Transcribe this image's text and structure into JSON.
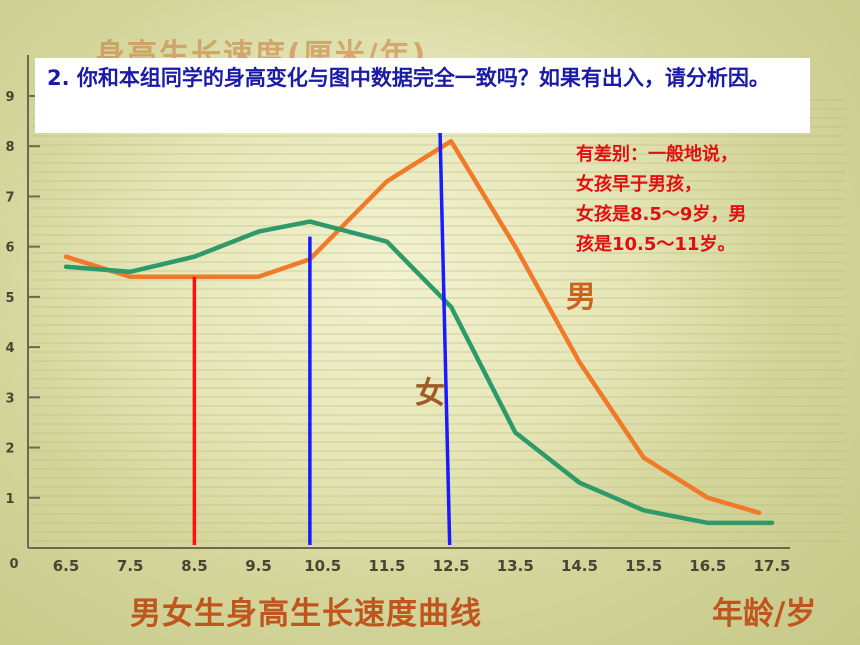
{
  "slide": {
    "faded_title": "身高生长速度(厘米/年)",
    "question": "2. 你和本组同学的身高变化与图中数据完全一致吗？如果有出入，请分析因。",
    "answer_lines": [
      "有差别：一般地说，",
      "女孩早于男孩，",
      "女孩是8.5～9岁，男",
      "孩是10.5～11岁。"
    ],
    "label_male": "男",
    "label_female": "女",
    "bottom_title": "男女生身高生长速度曲线",
    "x_unit": "年龄/岁",
    "colors": {
      "male_line": "#f07a28",
      "female_line": "#2e9a6a",
      "red_marker": "#ff1010",
      "blue_marker": "#1a1aff",
      "question_text": "#1a1aa8",
      "answer_text": "#e01010"
    }
  },
  "chart_data": {
    "type": "line",
    "title": "男女生身高生长速度曲线",
    "xlabel": "年龄/岁",
    "ylabel": "身高生长速度(厘米/年)",
    "x": [
      6.5,
      7.5,
      8.5,
      9.5,
      10.5,
      11.5,
      12.5,
      13.5,
      14.5,
      15.5,
      16.5,
      17.5
    ],
    "x_tick_labels": [
      "6.5",
      "7.5",
      "8.5",
      "9.5",
      "10.5",
      "11.5",
      "12.5",
      "13.5",
      "14.5",
      "15.5",
      "16.5",
      "17.5"
    ],
    "y_ticks": [
      0,
      1,
      2,
      3,
      4,
      5,
      6,
      7,
      8,
      9
    ],
    "y_tick_labels": [
      "0",
      "1",
      "2",
      "3",
      "4",
      "5",
      "6",
      "7",
      "8",
      "9"
    ],
    "xlim": [
      6.5,
      17.5
    ],
    "ylim": [
      0,
      9
    ],
    "grid": true,
    "series": [
      {
        "name": "男",
        "points": [
          [
            6.5,
            5.8
          ],
          [
            7.5,
            5.4
          ],
          [
            8.5,
            5.4
          ],
          [
            9.5,
            5.4
          ],
          [
            10.3,
            5.75
          ],
          [
            11.5,
            7.3
          ],
          [
            12.5,
            8.1
          ],
          [
            13.5,
            6.0
          ],
          [
            14.5,
            3.7
          ],
          [
            15.5,
            1.8
          ],
          [
            16.5,
            1.0
          ],
          [
            17.3,
            0.7
          ]
        ]
      },
      {
        "name": "女",
        "points": [
          [
            6.5,
            5.6
          ],
          [
            7.5,
            5.5
          ],
          [
            8.5,
            5.8
          ],
          [
            9.5,
            6.3
          ],
          [
            10.3,
            6.5
          ],
          [
            11.5,
            6.1
          ],
          [
            12.5,
            4.8
          ],
          [
            13.5,
            2.3
          ],
          [
            14.5,
            1.3
          ],
          [
            15.5,
            0.75
          ],
          [
            16.5,
            0.5
          ],
          [
            17.5,
            0.5
          ]
        ]
      }
    ],
    "markers": [
      {
        "x": 8.5,
        "y_top": 5.4,
        "color": "red"
      },
      {
        "x": 10.3,
        "y_top": 6.2,
        "color": "blue"
      },
      {
        "x": 12.4,
        "y_top": 7.7,
        "color": "blue"
      }
    ]
  }
}
